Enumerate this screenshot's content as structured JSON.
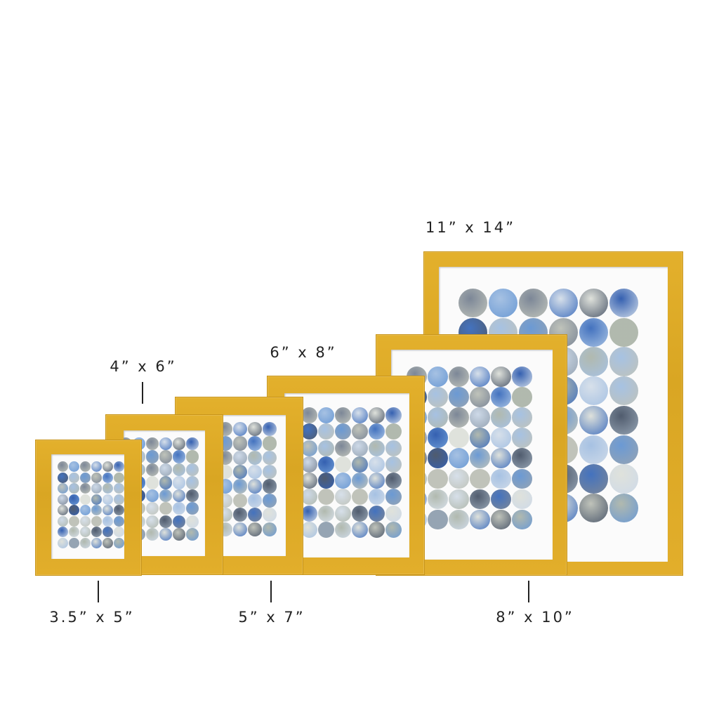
{
  "sizes": [
    {
      "label": "3.5” x 5”"
    },
    {
      "label": "4” x 6”"
    },
    {
      "label": "5” x 7”"
    },
    {
      "label": "6” x 8”"
    },
    {
      "label": "8” x 10”"
    },
    {
      "label": "11” x 14”"
    }
  ],
  "colors": {
    "frame": "#dfab27",
    "mat": "#fbfbfb",
    "art_palette": [
      "#2f63b8",
      "#5b8fd0",
      "#9dbbe0",
      "#c9d6e6",
      "#dcdfd8",
      "#b9bdb3",
      "#6e7a8c",
      "#3d4a5e",
      "#8a9aab",
      "#1f4fa8",
      "#d3dde8",
      "#a9b2a6"
    ]
  }
}
